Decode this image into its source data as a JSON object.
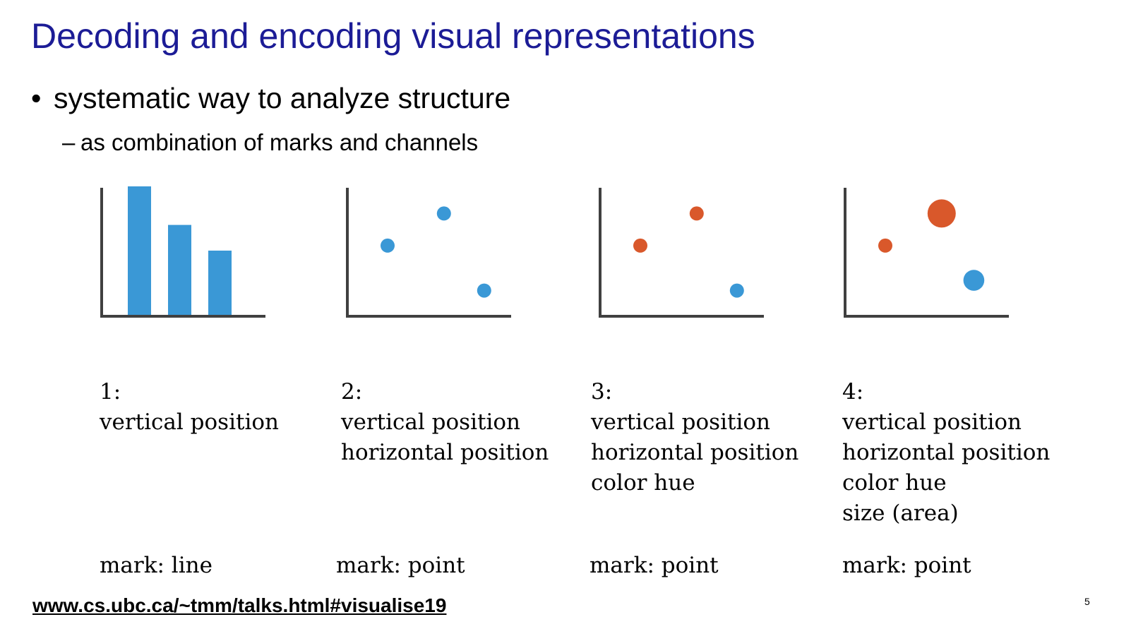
{
  "slide": {
    "title": "Decoding and encoding visual representations",
    "bullet": "systematic way to analyze structure",
    "bullet_symbol": "•",
    "sub_dash": "–",
    "sub_bullet": "as combination of marks and channels",
    "url": "www.cs.ubc.ca/~tmm/talks.html#visualise19",
    "page_number": "5"
  },
  "colors": {
    "title": "#1c1c96",
    "blue": "#3a98d6",
    "orange": "#d9582b",
    "axis": "#404040"
  },
  "panels": [
    {
      "number": "1:",
      "channels": [
        "vertical position"
      ],
      "mark": "mark: line"
    },
    {
      "number": "2:",
      "channels": [
        "vertical position",
        "horizontal position"
      ],
      "mark": "mark: point"
    },
    {
      "number": "3:",
      "channels": [
        "vertical position",
        "horizontal position",
        "color hue"
      ],
      "mark": "mark: point"
    },
    {
      "number": "4:",
      "channels": [
        "vertical position",
        "horizontal position",
        "color hue",
        "size (area)"
      ],
      "mark": "mark: point"
    }
  ],
  "chart_data": [
    {
      "type": "bar",
      "categories": [
        "",
        "",
        ""
      ],
      "values": [
        100,
        70,
        50
      ],
      "ylim": [
        0,
        100
      ],
      "color": "blue"
    },
    {
      "type": "scatter",
      "xlim": [
        0,
        10
      ],
      "ylim": [
        0,
        10
      ],
      "points": [
        {
          "x": 2.5,
          "y": 5.5,
          "color": "blue",
          "size": 1
        },
        {
          "x": 6.0,
          "y": 8.0,
          "color": "blue",
          "size": 1
        },
        {
          "x": 8.5,
          "y": 2.0,
          "color": "blue",
          "size": 1
        }
      ]
    },
    {
      "type": "scatter",
      "xlim": [
        0,
        10
      ],
      "ylim": [
        0,
        10
      ],
      "points": [
        {
          "x": 2.5,
          "y": 5.5,
          "color": "orange",
          "size": 1
        },
        {
          "x": 6.0,
          "y": 8.0,
          "color": "orange",
          "size": 1
        },
        {
          "x": 8.5,
          "y": 2.0,
          "color": "blue",
          "size": 1
        }
      ]
    },
    {
      "type": "scatter",
      "xlim": [
        0,
        10
      ],
      "ylim": [
        0,
        10
      ],
      "points": [
        {
          "x": 2.5,
          "y": 5.5,
          "color": "orange",
          "size": 1
        },
        {
          "x": 6.0,
          "y": 8.0,
          "color": "orange",
          "size": 4
        },
        {
          "x": 8.0,
          "y": 2.8,
          "color": "blue",
          "size": 2.2
        }
      ]
    }
  ]
}
